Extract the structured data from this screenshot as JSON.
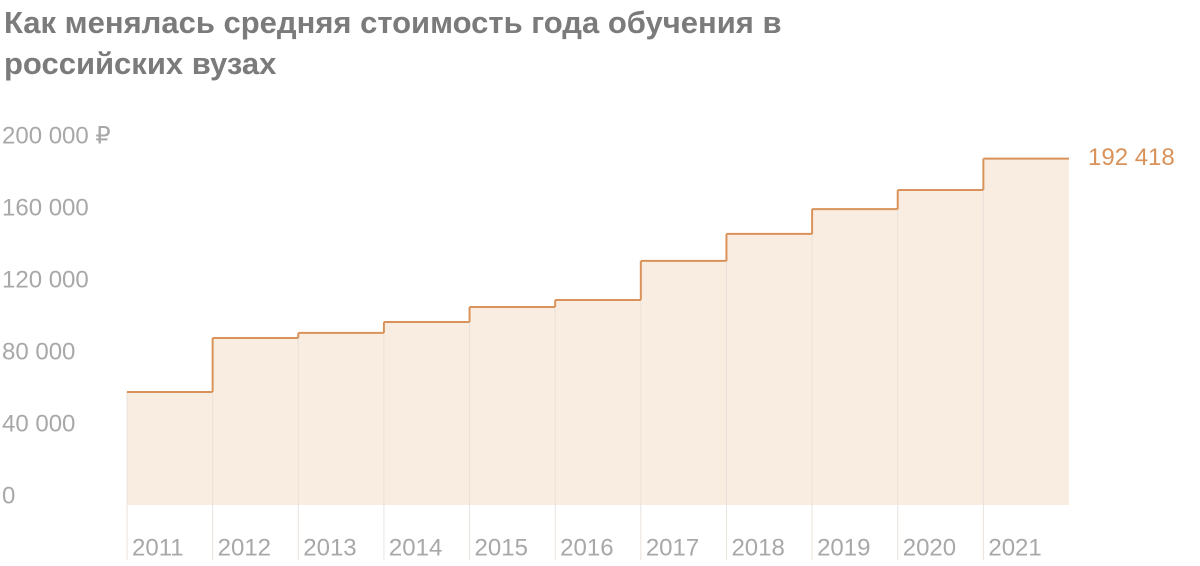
{
  "chart_data": {
    "type": "step",
    "title": "Как менялась средняя стоимость года обучения в российских вузах",
    "categories": [
      "2011",
      "2012",
      "2013",
      "2014",
      "2015",
      "2016",
      "2017",
      "2018",
      "2019",
      "2020",
      "2021"
    ],
    "values": [
      62800,
      92800,
      95600,
      101700,
      110000,
      113900,
      135600,
      150600,
      164400,
      175000,
      192418
    ],
    "value_labels": [
      null,
      null,
      null,
      null,
      null,
      null,
      null,
      null,
      null,
      null,
      "192 418"
    ],
    "color": "#d9935a",
    "fill_color": "#f9ece0",
    "ylim": [
      0,
      200000
    ],
    "yticks": [
      0,
      {
        "value": 40000,
        "label": "40 000"
      },
      {
        "value": 80000,
        "label": "80 000"
      },
      {
        "value": 120000,
        "label": "120 000"
      },
      {
        "value": 160000,
        "label": "160 000"
      },
      {
        "value": 200000,
        "label": "200 000 ₽"
      }
    ]
  }
}
